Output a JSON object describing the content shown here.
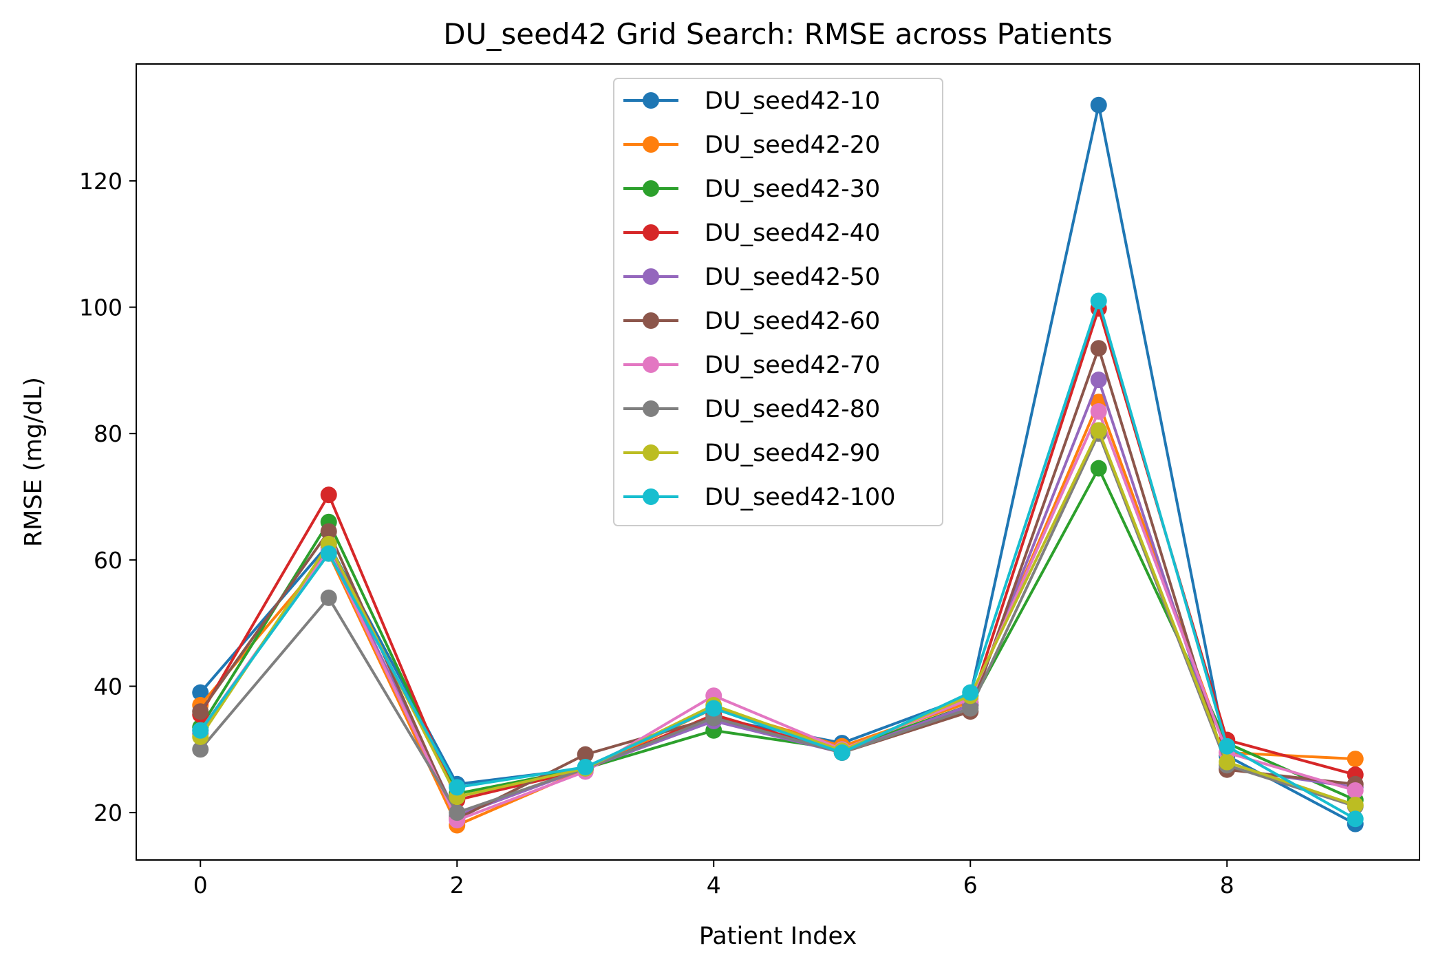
{
  "chart_data": {
    "type": "line",
    "title": "DU_seed42 Grid Search: RMSE across Patients",
    "xlabel": "Patient Index",
    "ylabel": "RMSE (mg/dL)",
    "xlim": [
      -0.5,
      9.5
    ],
    "ylim": [
      12.5,
      138.5
    ],
    "x_ticks": [
      0,
      2,
      4,
      6,
      8
    ],
    "y_ticks": [
      20,
      40,
      60,
      80,
      100,
      120
    ],
    "grid": false,
    "legend_position": "upper center",
    "x": [
      0,
      1,
      2,
      3,
      4,
      5,
      6,
      7,
      8,
      9
    ],
    "series": [
      {
        "name": "DU_seed42-10",
        "color": "#1f77b4",
        "values": [
          39.0,
          62.5,
          24.5,
          27.0,
          35.0,
          31.0,
          38.5,
          132.0,
          29.0,
          18.2
        ]
      },
      {
        "name": "DU_seed42-20",
        "color": "#ff7f0e",
        "values": [
          37.0,
          61.0,
          18.0,
          26.8,
          36.5,
          30.5,
          37.5,
          85.0,
          29.5,
          28.5
        ]
      },
      {
        "name": "DU_seed42-30",
        "color": "#2ca02c",
        "values": [
          33.5,
          66.0,
          23.0,
          27.0,
          33.0,
          30.0,
          37.0,
          74.5,
          31.0,
          22.0
        ]
      },
      {
        "name": "DU_seed42-40",
        "color": "#d62728",
        "values": [
          35.5,
          70.3,
          22.0,
          26.8,
          35.5,
          29.5,
          37.0,
          99.8,
          31.5,
          26.0
        ]
      },
      {
        "name": "DU_seed42-50",
        "color": "#9467bd",
        "values": [
          32.5,
          62.0,
          19.5,
          27.0,
          34.5,
          29.5,
          37.0,
          88.5,
          27.0,
          24.0
        ]
      },
      {
        "name": "DU_seed42-60",
        "color": "#8c564b",
        "values": [
          36.0,
          64.5,
          19.0,
          29.2,
          35.0,
          29.5,
          36.0,
          93.5,
          26.8,
          24.5
        ]
      },
      {
        "name": "DU_seed42-70",
        "color": "#e377c2",
        "values": [
          33.0,
          61.5,
          18.8,
          26.5,
          38.5,
          30.0,
          38.0,
          83.5,
          29.5,
          23.5
        ]
      },
      {
        "name": "DU_seed42-80",
        "color": "#7f7f7f",
        "values": [
          30.0,
          54.0,
          20.0,
          27.0,
          35.0,
          29.5,
          36.5,
          80.0,
          27.5,
          21.0
        ]
      },
      {
        "name": "DU_seed42-90",
        "color": "#bcbd22",
        "values": [
          32.0,
          62.5,
          22.5,
          27.0,
          37.0,
          29.8,
          38.5,
          80.5,
          28.0,
          21.2
        ]
      },
      {
        "name": "DU_seed42-100",
        "color": "#17becf",
        "values": [
          33.0,
          61.0,
          24.0,
          27.2,
          36.5,
          29.5,
          39.0,
          101.0,
          30.5,
          19.0
        ]
      }
    ]
  }
}
